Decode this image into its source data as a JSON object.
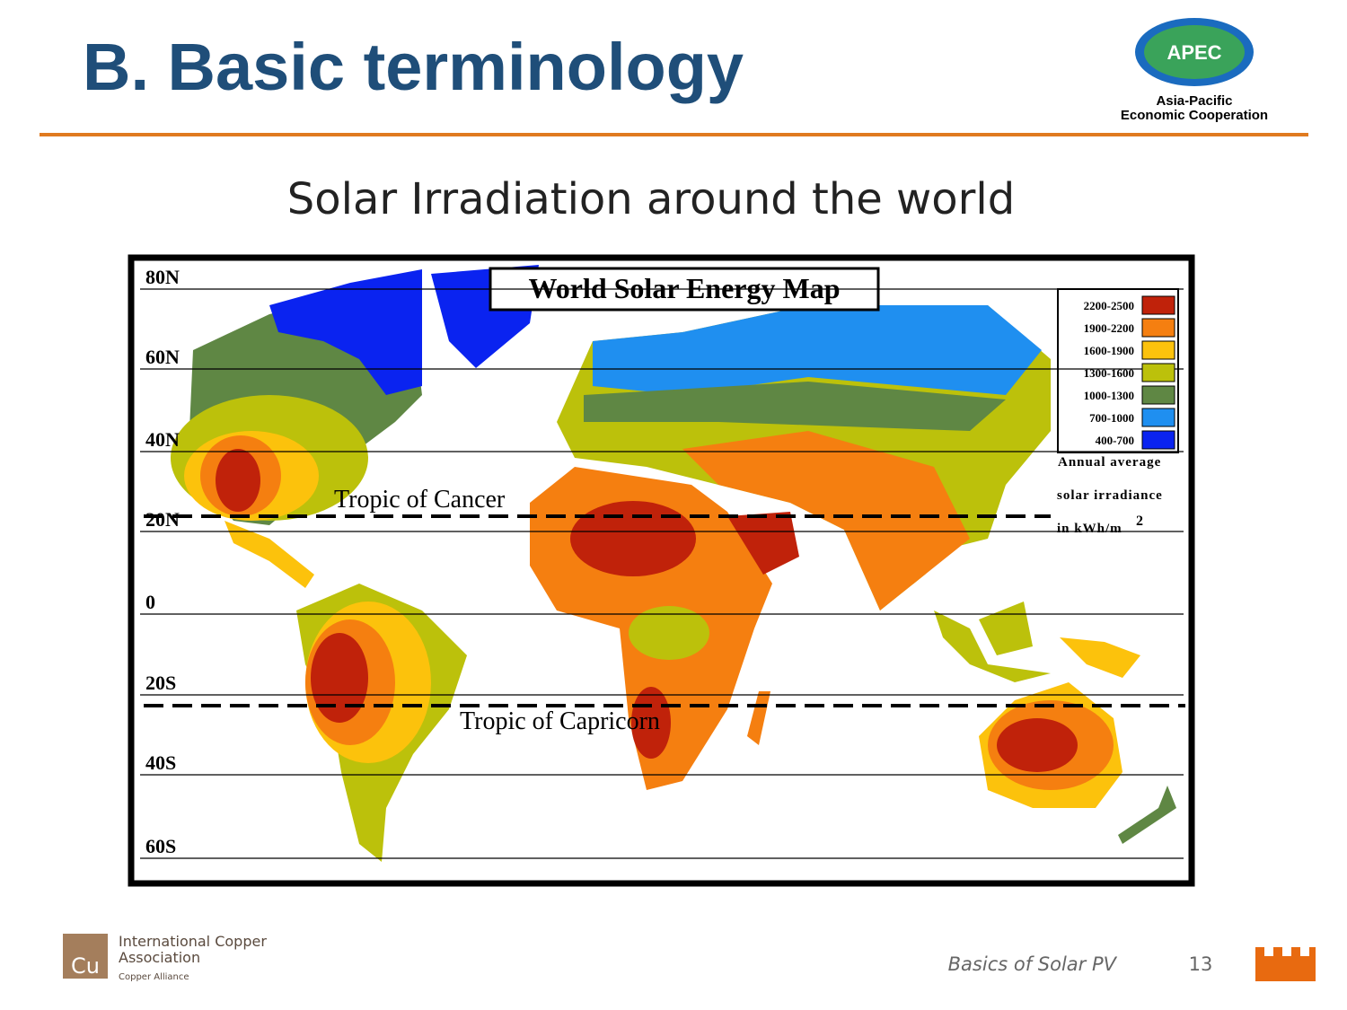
{
  "header": {
    "title": "B. Basic terminology",
    "logo": {
      "name": "APEC",
      "line1": "Asia-Pacific",
      "line2": "Economic Cooperation"
    }
  },
  "subtitle": "Solar Irradiation around the world",
  "map": {
    "title": "World Solar Energy  Map",
    "latitudes": [
      "80N",
      "60N",
      "40N",
      "20N",
      "0",
      "20S",
      "40S",
      "60S"
    ],
    "tropics": [
      "Tropic of Cancer",
      "Tropic of Capricorn"
    ],
    "legend": {
      "items": [
        {
          "label": "2200-2500",
          "color": "#c0220a"
        },
        {
          "label": "1900-2200",
          "color": "#f57f10"
        },
        {
          "label": "1600-1900",
          "color": "#fcc20c"
        },
        {
          "label": "1300-1600",
          "color": "#bcc10b"
        },
        {
          "label": "1000-1300",
          "color": "#5f8744"
        },
        {
          "label": "700-1000",
          "color": "#1f8ff0"
        },
        {
          "label": "400-700",
          "color": "#0a23f0"
        }
      ],
      "caption": [
        "Annual average",
        "solar irradiance",
        "in kWh/m"
      ],
      "superscript": "2"
    }
  },
  "footer": {
    "symbol": "Cu",
    "org": [
      "International Copper",
      "Association",
      "Copper Alliance"
    ],
    "course": "Basics of Solar PV",
    "page": "13"
  }
}
